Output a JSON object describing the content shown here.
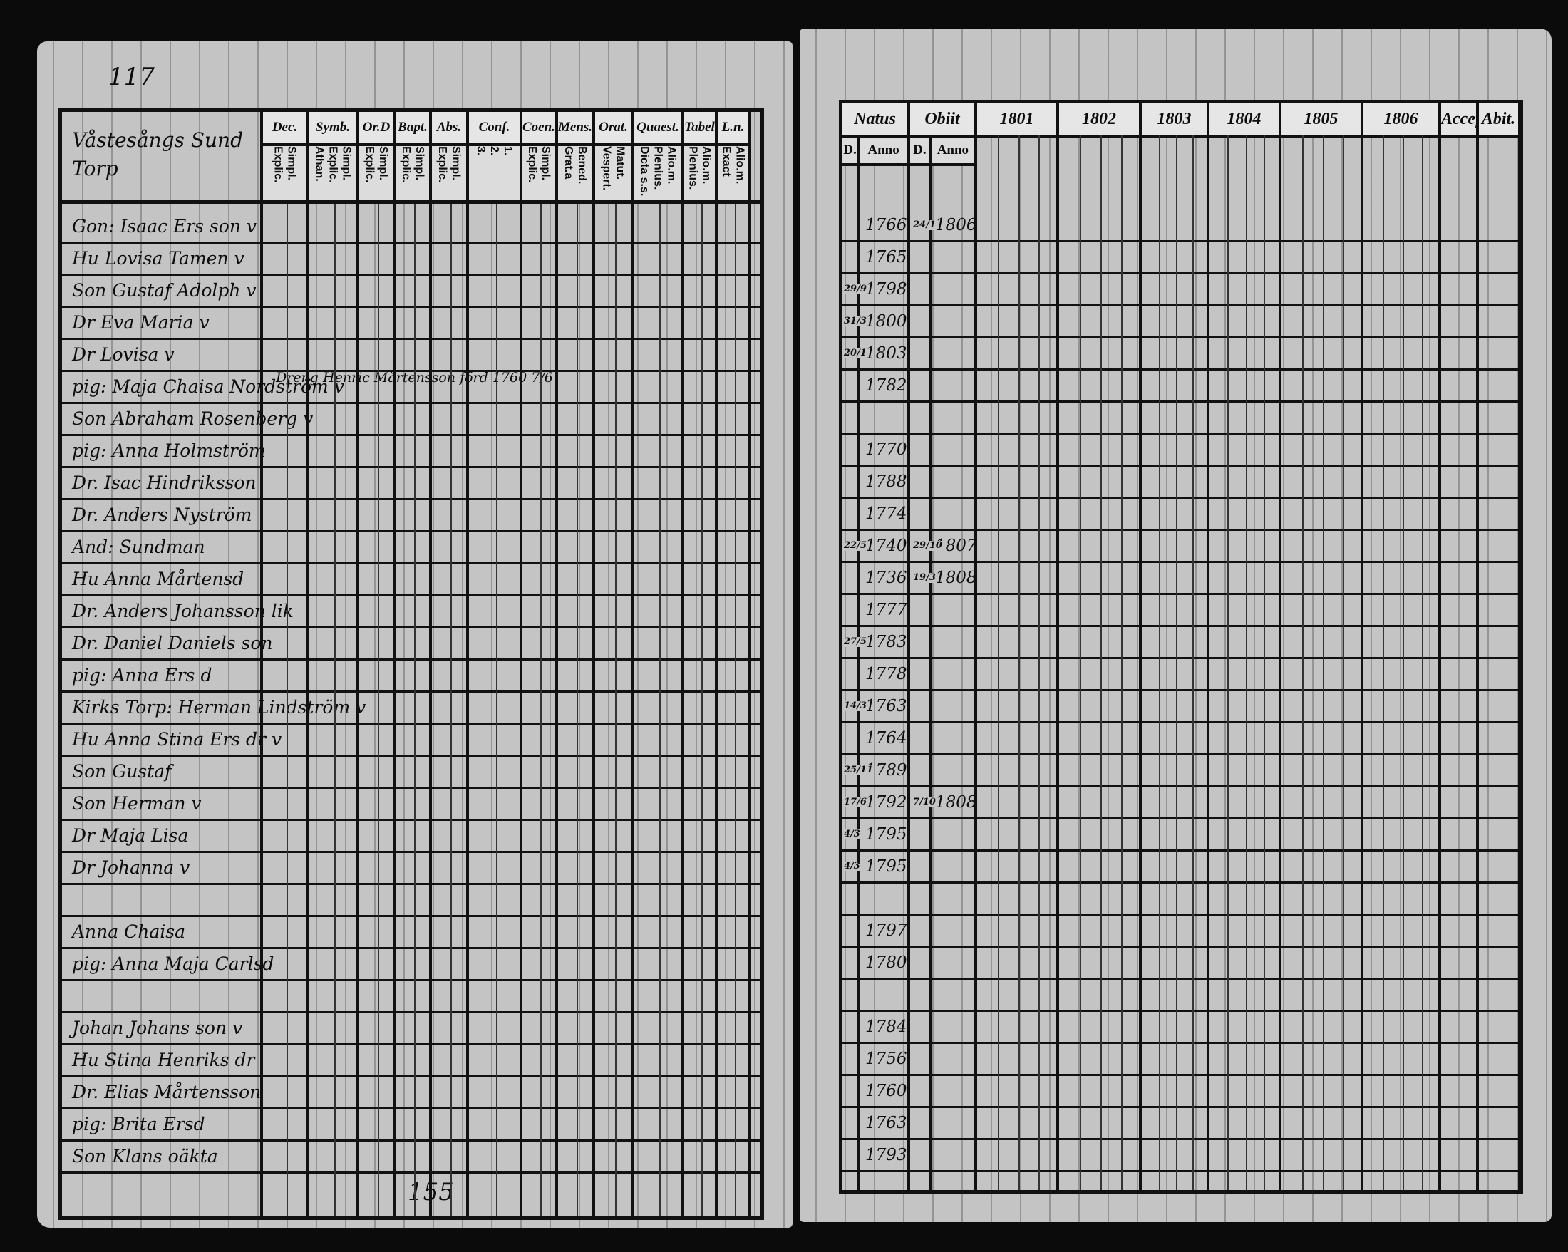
{
  "left_page": {
    "page_number_top": "117",
    "page_number_bottom": "155",
    "village_heading": "Våstesångs Sund Torp",
    "note_row5": "Dreng Henric Mårtensson förd 1760 7/6",
    "columns": [
      {
        "top": "Dec.",
        "sub": [
          "Explic.",
          "Simpl."
        ]
      },
      {
        "top": "Symb.",
        "sub": [
          "Athan.",
          "Explic.",
          "Simpl."
        ]
      },
      {
        "top": "Or.D",
        "sub": [
          "Explic.",
          "Simpl."
        ]
      },
      {
        "top": "Bapt.",
        "sub": [
          "Explic.",
          "Simpl."
        ]
      },
      {
        "top": "Abs.",
        "sub": [
          "Explic.",
          "Simpl."
        ]
      },
      {
        "top": "Conf.",
        "sub": [
          "3.",
          "2.",
          "1."
        ]
      },
      {
        "top": "Coen.D",
        "sub": [
          "Explic.",
          "Simpl."
        ]
      },
      {
        "top": "Mens.",
        "sub": [
          "Grat.a",
          "Bened."
        ]
      },
      {
        "top": "Orat.",
        "sub": [
          "Vespert.",
          "Matut."
        ]
      },
      {
        "top": "Quaest.",
        "sub": [
          "Dicta s.s.",
          "Plenius.",
          "Alio.m."
        ]
      },
      {
        "top": "Tabel",
        "sub": [
          "Plenius.",
          "Alio.m."
        ]
      },
      {
        "top": "L.n.",
        "sub": [
          "Exact",
          "Alio.m."
        ]
      }
    ]
  },
  "right_page": {
    "headers": [
      {
        "top": "Natus",
        "sub": [
          "D.",
          "Anno"
        ]
      },
      {
        "top": "Obiit",
        "sub": [
          "D.",
          "Anno"
        ]
      },
      {
        "top": "1801",
        "sub": []
      },
      {
        "top": "1802",
        "sub": []
      },
      {
        "top": "1803",
        "sub": []
      },
      {
        "top": "1804",
        "sub": []
      },
      {
        "top": "1805",
        "sub": []
      },
      {
        "top": "1806",
        "sub": []
      },
      {
        "top": "Accef.",
        "sub": []
      },
      {
        "top": "Abit.",
        "sub": []
      }
    ]
  },
  "rows": [
    {
      "name": "Gon: Isaac Ers son v",
      "natus_d": "",
      "natus_anno": "1766",
      "obiit_d": "24/1",
      "obiit_anno": "1806"
    },
    {
      "name": "Hu Lovisa Tamen v",
      "natus_d": "",
      "natus_anno": "1765",
      "obiit_d": "",
      "obiit_anno": ""
    },
    {
      "name": "Son Gustaf Adolph v",
      "natus_d": "29/9",
      "natus_anno": "1798",
      "obiit_d": "",
      "obiit_anno": ""
    },
    {
      "name": "Dr Eva Maria v",
      "natus_d": "31/3",
      "natus_anno": "1800",
      "obiit_d": "",
      "obiit_anno": ""
    },
    {
      "name": "Dr Lovisa v",
      "natus_d": "20/1",
      "natus_anno": "1803",
      "obiit_d": "",
      "obiit_anno": ""
    },
    {
      "name": "pig: Maja Chaisa Nordström v",
      "natus_d": "",
      "natus_anno": "1782",
      "obiit_d": "",
      "obiit_anno": ""
    },
    {
      "name": "Son Abraham Rosenberg v",
      "natus_d": "",
      "natus_anno": "",
      "obiit_d": "",
      "obiit_anno": ""
    },
    {
      "name": "pig: Anna Holmström",
      "natus_d": "",
      "natus_anno": "1770",
      "obiit_d": "",
      "obiit_anno": ""
    },
    {
      "name": "Dr. Isac Hindriksson",
      "natus_d": "",
      "natus_anno": "1788",
      "obiit_d": "",
      "obiit_anno": ""
    },
    {
      "name": "Dr. Anders Nyström",
      "natus_d": "",
      "natus_anno": "1774",
      "obiit_d": "",
      "obiit_anno": ""
    },
    {
      "name": "And: Sundman",
      "natus_d": "22/5",
      "natus_anno": "1740",
      "obiit_d": "29/10",
      "obiit_anno": "1807"
    },
    {
      "name": "Hu Anna Mårtensd",
      "natus_d": "",
      "natus_anno": "1736",
      "obiit_d": "19/3",
      "obiit_anno": "1808"
    },
    {
      "name": "Dr. Anders Johansson lik",
      "natus_d": "",
      "natus_anno": "1777",
      "obiit_d": "",
      "obiit_anno": ""
    },
    {
      "name": "Dr. Daniel Daniels son",
      "natus_d": "27/5",
      "natus_anno": "1783",
      "obiit_d": "",
      "obiit_anno": ""
    },
    {
      "name": "pig: Anna Ers d",
      "natus_d": "",
      "natus_anno": "1778",
      "obiit_d": "",
      "obiit_anno": ""
    },
    {
      "name": "Kirks Torp: Herman Lindström v",
      "natus_d": "14/3",
      "natus_anno": "1763",
      "obiit_d": "",
      "obiit_anno": ""
    },
    {
      "name": "Hu Anna Stina Ers dr v",
      "natus_d": "",
      "natus_anno": "1764",
      "obiit_d": "",
      "obiit_anno": ""
    },
    {
      "name": "Son Gustaf",
      "natus_d": "25/11",
      "natus_anno": "1789",
      "obiit_d": "",
      "obiit_anno": ""
    },
    {
      "name": "Son Herman v",
      "natus_d": "17/6",
      "natus_anno": "1792",
      "obiit_d": "7/10",
      "obiit_anno": "1808"
    },
    {
      "name": "Dr Maja Lisa",
      "natus_d": "4/3",
      "natus_anno": "1795",
      "obiit_d": "",
      "obiit_anno": ""
    },
    {
      "name": "Dr Johanna v",
      "natus_d": "4/3",
      "natus_anno": "1795",
      "obiit_d": "",
      "obiit_anno": ""
    },
    {
      "name": "",
      "natus_d": "",
      "natus_anno": "",
      "obiit_d": "",
      "obiit_anno": ""
    },
    {
      "name": "Anna Chaisa",
      "natus_d": "",
      "natus_anno": "1797",
      "obiit_d": "",
      "obiit_anno": ""
    },
    {
      "name": "pig: Anna Maja Carlsd",
      "natus_d": "",
      "natus_anno": "1780",
      "obiit_d": "",
      "obiit_anno": ""
    },
    {
      "name": "",
      "natus_d": "",
      "natus_anno": "",
      "obiit_d": "",
      "obiit_anno": ""
    },
    {
      "name": "Johan Johans son v",
      "natus_d": "",
      "natus_anno": "1784",
      "obiit_d": "",
      "obiit_anno": ""
    },
    {
      "name": "Hu Stina Henriks dr",
      "natus_d": "",
      "natus_anno": "1756",
      "obiit_d": "",
      "obiit_anno": ""
    },
    {
      "name": "Dr. Elias Mårtensson",
      "natus_d": "",
      "natus_anno": "1760",
      "obiit_d": "",
      "obiit_anno": ""
    },
    {
      "name": "pig: Brita Ersd",
      "natus_d": "",
      "natus_anno": "1763",
      "obiit_d": "",
      "obiit_anno": ""
    },
    {
      "name": "Son Klans oäkta",
      "natus_d": "",
      "natus_anno": "1793",
      "obiit_d": "",
      "obiit_anno": ""
    }
  ]
}
